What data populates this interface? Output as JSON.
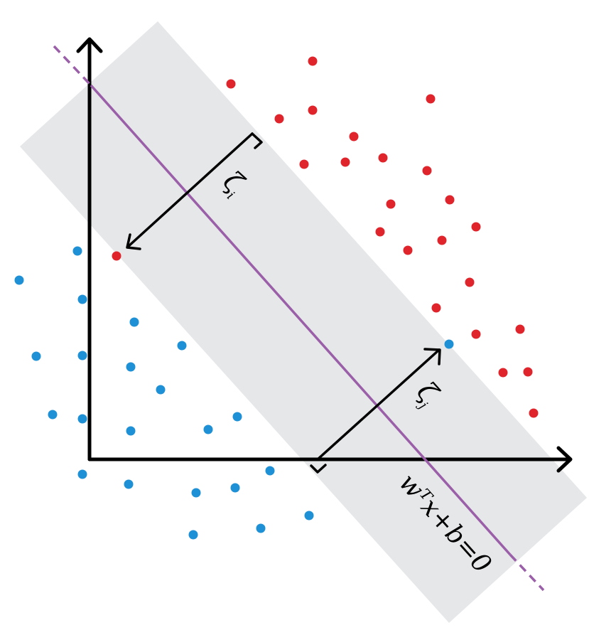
{
  "colors": {
    "margin_band": "#e6e7e9",
    "hyperplane": "#9a5fa8",
    "axes": "#000000",
    "positive_points": "#e0242c",
    "negative_points": "#1e90d6"
  },
  "labels": {
    "xi_i": "ζ",
    "xi_i_sub": "i",
    "xi_j": "ζ",
    "xi_j_sub": "j",
    "hyperplane_eq": "wᵀx+b=0"
  }
}
